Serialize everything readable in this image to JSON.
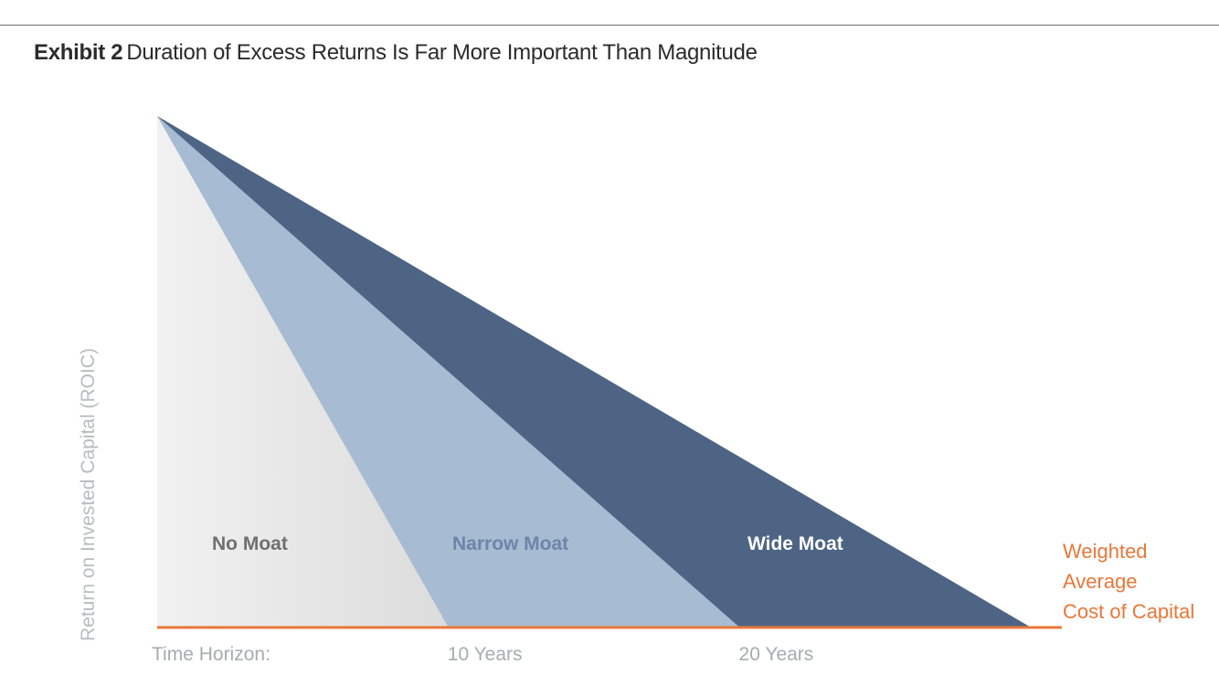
{
  "header": {
    "exhibit_label": "Exhibit 2",
    "title": "Duration of Excess Returns Is Far More Important Than Magnitude"
  },
  "colors": {
    "rule": "#6f6f6f",
    "no_moat": "#e6e6e6",
    "narrow_moat": "#a7bbd2",
    "wide_moat": "#4d6485",
    "wacc_line": "#e8773a",
    "axis_text": "#a8abae"
  },
  "chart_data": {
    "type": "area",
    "title": "Duration of Excess Returns Is Far More Important Than Magnitude",
    "ylabel": "Return on Invested Capital (ROIC)",
    "xlabel": "Time Horizon:",
    "x_ticks": [
      {
        "value": 10,
        "label": "10 Years"
      },
      {
        "value": 20,
        "label": "20 Years"
      }
    ],
    "xlim": [
      0,
      30
    ],
    "ylim": [
      0,
      1
    ],
    "baseline": {
      "label": "Weighted Average Cost of Capital",
      "label_lines": [
        "Weighted",
        "Average",
        "Cost of Capital"
      ],
      "value": 0
    },
    "series": [
      {
        "name": "Wide Moat",
        "start_roic": 1,
        "fade_years": 30,
        "label_color": "#ffffff"
      },
      {
        "name": "Narrow Moat",
        "start_roic": 1,
        "fade_years": 20,
        "label_color": "#6c85a8"
      },
      {
        "name": "No Moat",
        "start_roic": 1,
        "fade_years": 10,
        "label_color": "#6f6f6f"
      }
    ]
  }
}
